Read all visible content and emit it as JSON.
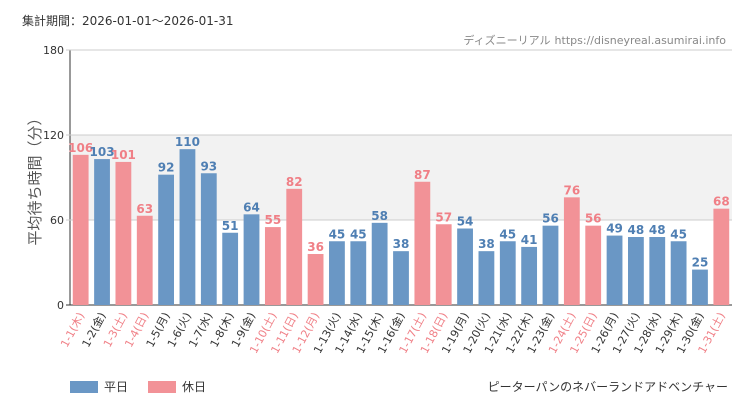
{
  "header": {
    "period": "集計期間：2026-01-01～2026-01-31",
    "source_name": "ディズニーリアル",
    "source_url": "https://disneyreal.asumirai.info"
  },
  "footer": {
    "attraction": "ピーターパンのネバーランドアドベンチャー"
  },
  "colors": {
    "weekday": "#6a97c5",
    "holiday": "#f29297",
    "band": "#f2f2f2"
  },
  "chart_data": {
    "type": "bar",
    "ylabel": "平均待ち時間（分）",
    "ylim": [
      0,
      180
    ],
    "yticks": [
      0,
      60,
      120,
      180
    ],
    "highlight_band": [
      60,
      120
    ],
    "legend": [
      {
        "key": "weekday",
        "label": "平日"
      },
      {
        "key": "holiday",
        "label": "休日"
      }
    ],
    "categories": [
      "1-1(木)",
      "1-2(金)",
      "1-3(土)",
      "1-4(日)",
      "1-5(月)",
      "1-6(火)",
      "1-7(水)",
      "1-8(木)",
      "1-9(金)",
      "1-10(土)",
      "1-11(日)",
      "1-12(月)",
      "1-13(火)",
      "1-14(水)",
      "1-15(木)",
      "1-16(金)",
      "1-17(土)",
      "1-18(日)",
      "1-19(月)",
      "1-20(火)",
      "1-21(水)",
      "1-22(木)",
      "1-23(金)",
      "1-24(土)",
      "1-25(日)",
      "1-26(月)",
      "1-27(火)",
      "1-28(水)",
      "1-29(木)",
      "1-30(金)",
      "1-31(土)"
    ],
    "values": [
      106,
      103,
      101,
      63,
      92,
      110,
      93,
      51,
      64,
      55,
      82,
      36,
      45,
      45,
      58,
      38,
      87,
      57,
      54,
      38,
      45,
      41,
      56,
      76,
      56,
      49,
      48,
      48,
      45,
      25,
      68
    ],
    "day_type": [
      "holiday",
      "weekday",
      "holiday",
      "holiday",
      "weekday",
      "weekday",
      "weekday",
      "weekday",
      "weekday",
      "holiday",
      "holiday",
      "holiday",
      "weekday",
      "weekday",
      "weekday",
      "weekday",
      "holiday",
      "holiday",
      "weekday",
      "weekday",
      "weekday",
      "weekday",
      "weekday",
      "holiday",
      "holiday",
      "weekday",
      "weekday",
      "weekday",
      "weekday",
      "weekday",
      "holiday"
    ]
  }
}
